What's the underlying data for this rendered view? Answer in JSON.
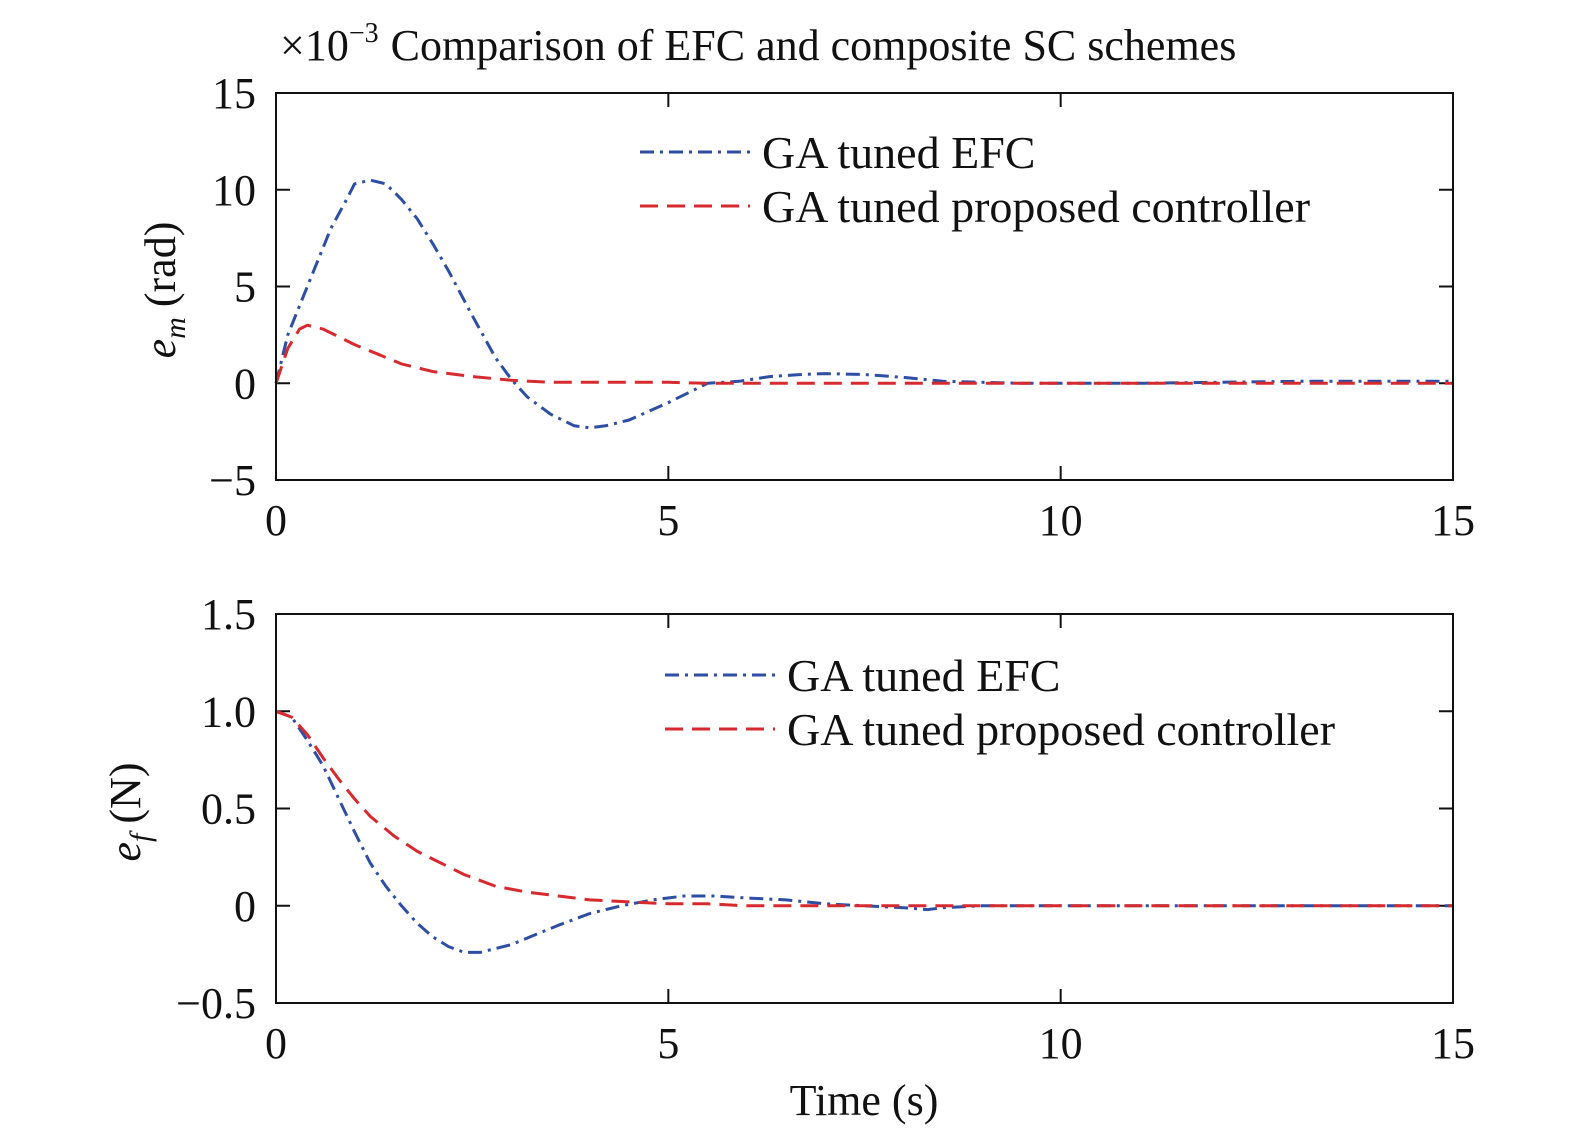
{
  "chart_data": [
    {
      "type": "line",
      "title": "Comparison of EFC and composite SC schemes",
      "scale_note": {
        "base": "×10",
        "exp": "−3"
      },
      "ylabel": {
        "sym": "e",
        "sub": "m",
        "unit": "(rad)"
      },
      "xlabel": "",
      "xlim": [
        0,
        15
      ],
      "ylim": [
        -5,
        15
      ],
      "xticks": [
        0,
        5,
        10,
        15
      ],
      "xtick_labels": [
        "0",
        "5",
        "10",
        "15"
      ],
      "yticks": [
        -5,
        0,
        5,
        10,
        15
      ],
      "ytick_labels": [
        "−5",
        "0",
        "5",
        "10",
        "15"
      ],
      "legend_position": "top-right",
      "series": [
        {
          "name": "GA tuned EFC",
          "color": "#2e4ea3",
          "style": "dashdot",
          "x": [
            0,
            0.15,
            0.3,
            0.5,
            0.7,
            0.9,
            1.0,
            1.2,
            1.4,
            1.6,
            1.8,
            2.0,
            2.2,
            2.5,
            2.8,
            3.0,
            3.2,
            3.5,
            3.8,
            4.0,
            4.2,
            4.5,
            5.0,
            5.5,
            5.9,
            6.3,
            6.7,
            7.0,
            7.5,
            8.0,
            8.5,
            9.0,
            9.5,
            10.0,
            11.0,
            12.0,
            13.0,
            14.0,
            15.0
          ],
          "y": [
            0,
            2.5,
            4.0,
            6.0,
            8.0,
            9.5,
            10.3,
            10.5,
            10.3,
            9.5,
            8.5,
            7.2,
            5.8,
            3.5,
            1.3,
            0.2,
            -0.7,
            -1.6,
            -2.2,
            -2.3,
            -2.2,
            -1.9,
            -1.0,
            0.0,
            0.1,
            0.35,
            0.45,
            0.5,
            0.45,
            0.3,
            0.1,
            0.05,
            0.0,
            0.0,
            0.0,
            0.05,
            0.1,
            0.1,
            0.1
          ]
        },
        {
          "name": "GA tuned proposed controller",
          "color": "#d62a2e",
          "style": "dashed",
          "x": [
            0,
            0.15,
            0.3,
            0.4,
            0.6,
            0.8,
            1.0,
            1.3,
            1.6,
            2.0,
            2.5,
            3.0,
            3.5,
            4.0,
            4.5,
            5.0,
            5.5,
            6.0,
            7.0,
            8.0,
            9.0,
            10.0,
            11.0,
            12.0,
            13.0,
            14.0,
            15.0
          ],
          "y": [
            0,
            1.8,
            2.8,
            3.0,
            2.8,
            2.4,
            2.0,
            1.5,
            1.0,
            0.6,
            0.35,
            0.15,
            0.05,
            0.05,
            0.05,
            0.05,
            0.0,
            0.0,
            0.0,
            0.0,
            0.0,
            0.0,
            0.0,
            0.0,
            0.0,
            0.0,
            0.0
          ]
        }
      ]
    },
    {
      "type": "line",
      "title": "",
      "ylabel": {
        "sym": "e",
        "sub": "f",
        "unit": "(N)"
      },
      "xlabel": "Time (s)",
      "xlim": [
        0,
        15
      ],
      "ylim": [
        -0.5,
        1.5
      ],
      "xticks": [
        0,
        5,
        10,
        15
      ],
      "xtick_labels": [
        "0",
        "5",
        "10",
        "15"
      ],
      "yticks": [
        -0.5,
        0,
        0.5,
        1.0,
        1.5
      ],
      "ytick_labels": [
        "−0.5",
        "0",
        "0.5",
        "1.0",
        "1.5"
      ],
      "legend_position": "top-right",
      "series": [
        {
          "name": "GA tuned EFC",
          "color": "#2e4ea3",
          "style": "dashdot",
          "x": [
            0,
            0.2,
            0.4,
            0.6,
            0.8,
            1.0,
            1.2,
            1.4,
            1.6,
            1.8,
            2.0,
            2.2,
            2.4,
            2.6,
            2.8,
            3.0,
            3.3,
            3.6,
            4.0,
            4.4,
            4.8,
            5.2,
            5.6,
            6.0,
            6.5,
            7.0,
            7.5,
            8.0,
            8.3,
            8.5,
            9.0,
            10.0,
            11.0,
            12.0,
            13.0,
            14.0,
            15.0
          ],
          "y": [
            1.0,
            0.97,
            0.85,
            0.72,
            0.55,
            0.38,
            0.22,
            0.1,
            0.0,
            -0.09,
            -0.16,
            -0.21,
            -0.24,
            -0.24,
            -0.22,
            -0.2,
            -0.15,
            -0.1,
            -0.04,
            0.0,
            0.03,
            0.05,
            0.05,
            0.04,
            0.03,
            0.01,
            0.0,
            -0.01,
            -0.02,
            -0.01,
            0.0,
            0.0,
            0.0,
            0.0,
            0.0,
            0.0,
            0.0
          ]
        },
        {
          "name": "GA tuned proposed controller",
          "color": "#d62a2e",
          "style": "dashed",
          "x": [
            0,
            0.2,
            0.4,
            0.6,
            0.8,
            1.0,
            1.2,
            1.5,
            1.8,
            2.0,
            2.4,
            2.8,
            3.2,
            3.6,
            4.0,
            4.5,
            5.0,
            5.5,
            6.0,
            7.0,
            8.0,
            9.0,
            10.0,
            11.0,
            12.0,
            13.0,
            14.0,
            15.0
          ],
          "y": [
            1.0,
            0.97,
            0.88,
            0.76,
            0.65,
            0.55,
            0.46,
            0.36,
            0.28,
            0.24,
            0.16,
            0.1,
            0.07,
            0.05,
            0.03,
            0.02,
            0.01,
            0.01,
            0.0,
            0.0,
            0.0,
            0.0,
            0.0,
            0.0,
            0.0,
            0.0,
            0.0,
            0.0
          ]
        }
      ]
    }
  ]
}
